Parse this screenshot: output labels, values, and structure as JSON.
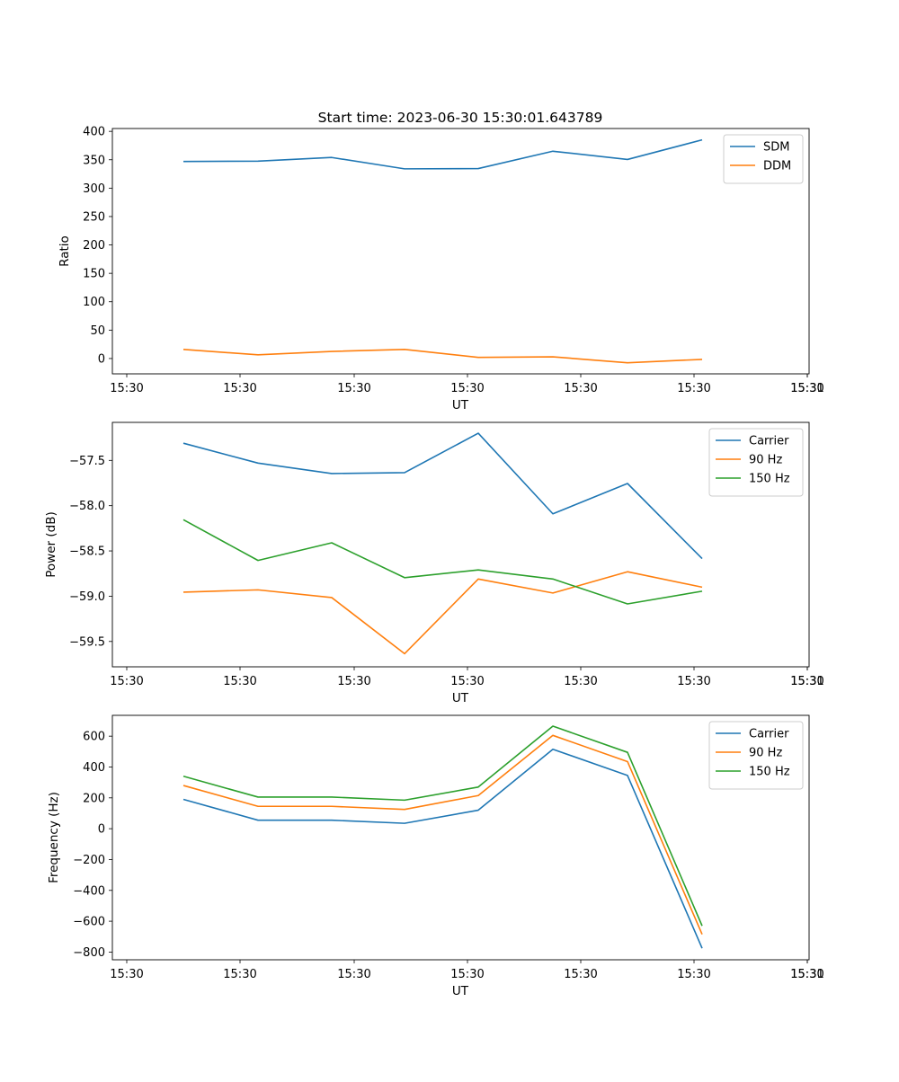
{
  "title": "Start time: 2023-06-30 15:30:01.643789",
  "colors": {
    "blue": "#1f77b4",
    "orange": "#ff7f0e",
    "green": "#2ca02c"
  },
  "chart_data": [
    {
      "type": "line",
      "ylabel": "Ratio",
      "xlabel": "UT",
      "x_tick_labels": [
        "15:30",
        "15:30",
        "15:30",
        "15:30",
        "15:30",
        "15:30",
        "15:30",
        "15:31"
      ],
      "y_ticks": [
        0,
        50,
        100,
        150,
        200,
        250,
        300,
        350,
        400
      ],
      "ylim": [
        -27,
        405
      ],
      "legend": "top-right",
      "series": [
        {
          "name": "SDM",
          "color": "#1f77b4",
          "values": [
            347,
            347.5,
            354,
            334,
            334.5,
            365,
            350.5,
            385
          ]
        },
        {
          "name": "DDM",
          "color": "#ff7f0e",
          "values": [
            16,
            6.5,
            12.5,
            16,
            2,
            3,
            -7.5,
            -1.5
          ]
        }
      ]
    },
    {
      "type": "line",
      "ylabel": "Power (dB)",
      "xlabel": "UT",
      "x_tick_labels": [
        "15:30",
        "15:30",
        "15:30",
        "15:30",
        "15:30",
        "15:30",
        "15:30",
        "15:31"
      ],
      "y_ticks": [
        -59.5,
        -59.0,
        -58.5,
        -58.0,
        -57.5
      ],
      "y_tick_labels": [
        "−59.5",
        "−59.0",
        "−58.5",
        "−58.0",
        "−57.5"
      ],
      "ylim": [
        -59.78,
        -57.08
      ],
      "legend": "top-right",
      "series": [
        {
          "name": "Carrier",
          "color": "#1f77b4",
          "values": [
            -57.31,
            -57.53,
            -57.645,
            -57.635,
            -57.2,
            -58.09,
            -57.755,
            -58.585
          ]
        },
        {
          "name": "90 Hz",
          "color": "#ff7f0e",
          "values": [
            -58.955,
            -58.93,
            -59.015,
            -59.635,
            -58.81,
            -58.965,
            -58.73,
            -58.9
          ]
        },
        {
          "name": "150 Hz",
          "color": "#2ca02c",
          "values": [
            -58.155,
            -58.605,
            -58.41,
            -58.795,
            -58.71,
            -58.81,
            -59.085,
            -58.945
          ]
        }
      ]
    },
    {
      "type": "line",
      "ylabel": "Frequency (Hz)",
      "xlabel": "UT",
      "x_tick_labels": [
        "15:30",
        "15:30",
        "15:30",
        "15:30",
        "15:30",
        "15:30",
        "15:30",
        "15:31"
      ],
      "y_ticks": [
        -800,
        -600,
        -400,
        -200,
        0,
        200,
        400,
        600
      ],
      "y_tick_labels": [
        "−800",
        "−600",
        "−400",
        "−200",
        "0",
        "200",
        "400",
        "600"
      ],
      "ylim": [
        -850,
        735
      ],
      "legend": "top-right",
      "series": [
        {
          "name": "Carrier",
          "color": "#1f77b4",
          "values": [
            190,
            55,
            55,
            35,
            120,
            515,
            345,
            -775
          ]
        },
        {
          "name": "90 Hz",
          "color": "#ff7f0e",
          "values": [
            280,
            145,
            145,
            125,
            215,
            605,
            435,
            -685
          ]
        },
        {
          "name": "150 Hz",
          "color": "#2ca02c",
          "values": [
            340,
            205,
            205,
            185,
            270,
            665,
            495,
            -630
          ]
        }
      ]
    }
  ]
}
